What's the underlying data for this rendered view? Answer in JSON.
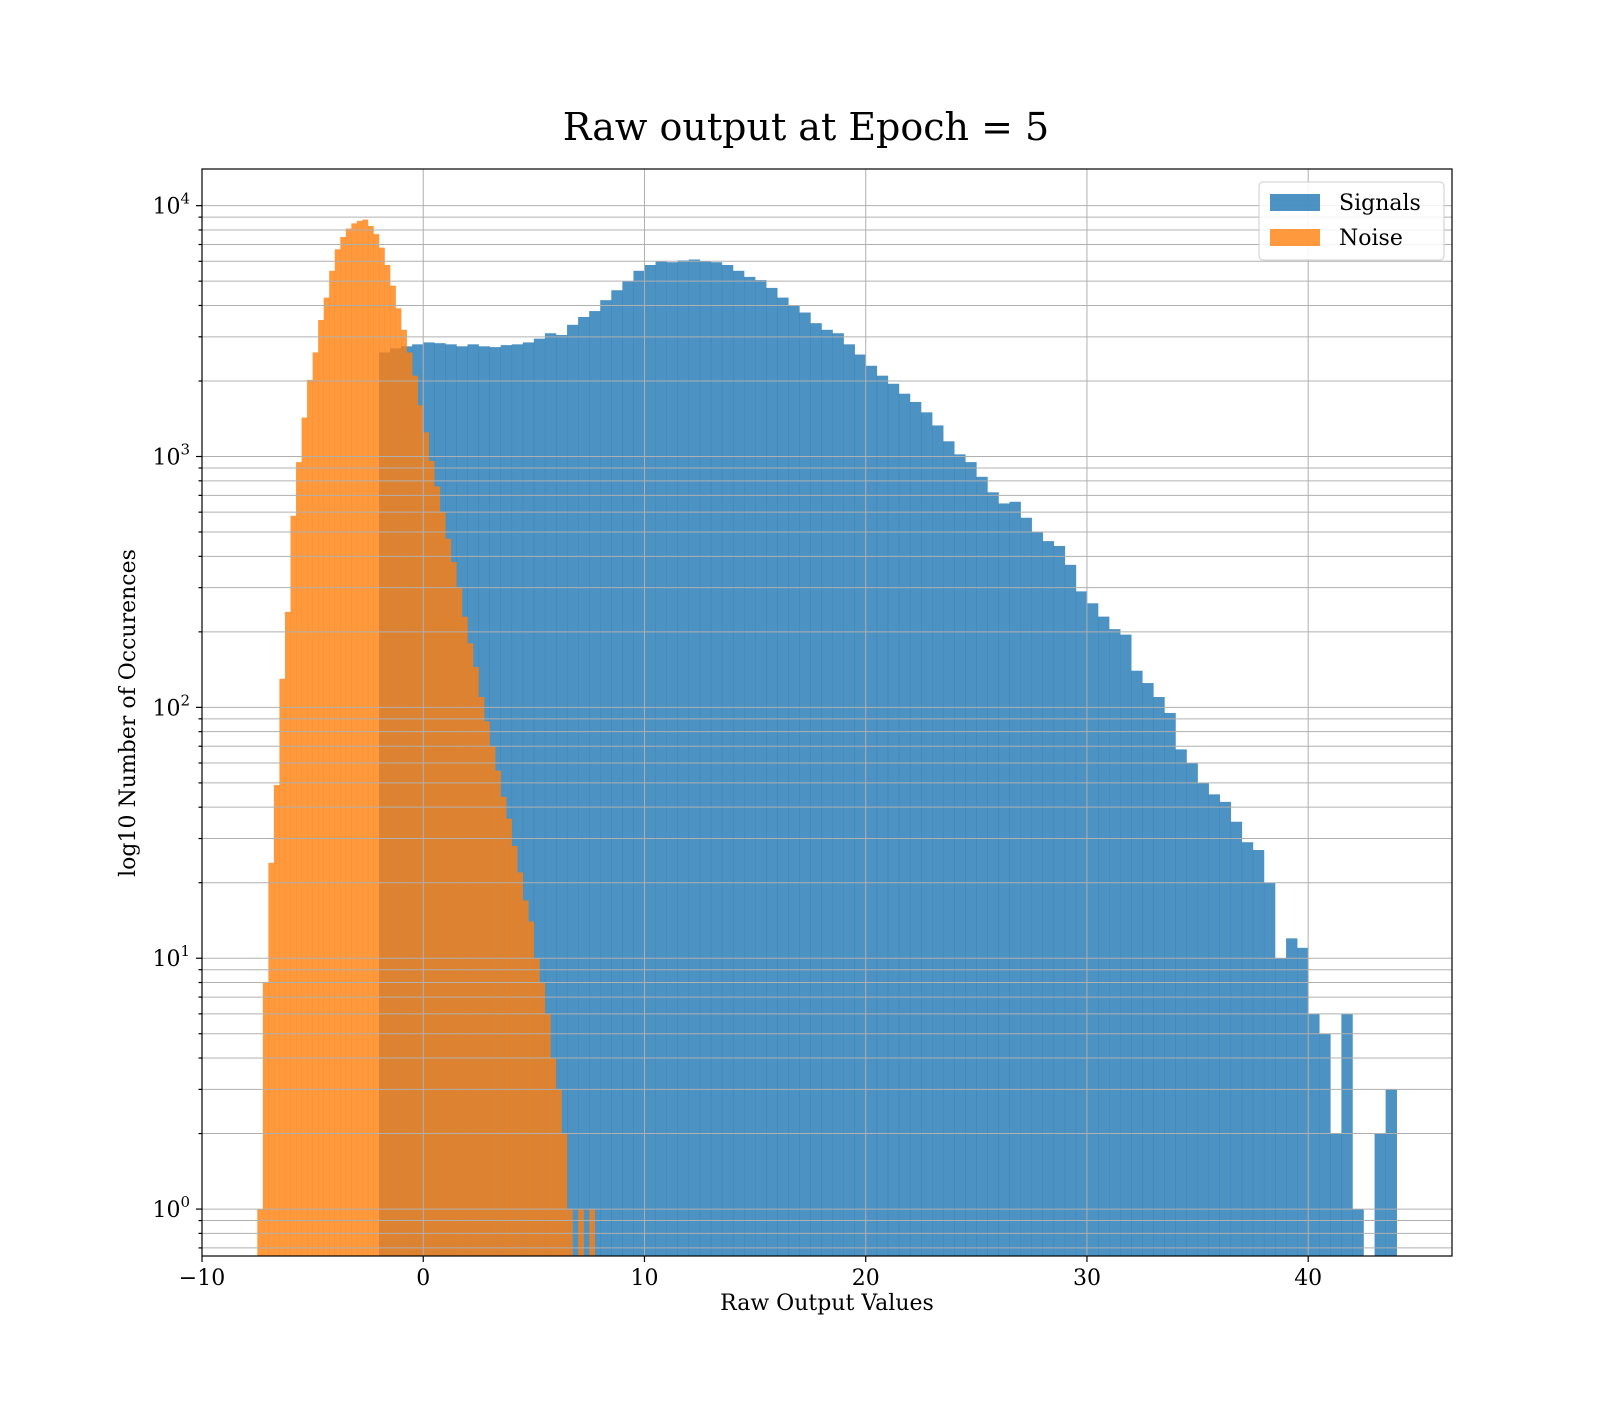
{
  "chart_data": {
    "type": "histogram",
    "title": "Raw output at Epoch = 5",
    "xlabel": "Raw Output Values",
    "ylabel": "log10 Number of Occurences",
    "yscale": "log",
    "xlim": [
      -10,
      46.5
    ],
    "ylim": [
      0.65,
      14000
    ],
    "grid": true,
    "legend_position": "top-right",
    "xticks": [
      -10,
      0,
      10,
      20,
      30,
      40
    ],
    "xtick_labels": [
      "−10",
      "0",
      "10",
      "20",
      "30",
      "40"
    ],
    "yticks": [
      1,
      10,
      100,
      1000,
      10000
    ],
    "ytick_labels": [
      "10",
      "10",
      "10",
      "10",
      "10"
    ],
    "ytick_exponents": [
      "0",
      "1",
      "2",
      "3",
      "4"
    ],
    "series": [
      {
        "name": "Signals",
        "color": "#1f77b4",
        "bins": [
          [
            -2.0,
            -1.5,
            2600
          ],
          [
            -1.5,
            -1.0,
            2700
          ],
          [
            -1.0,
            -0.5,
            2750
          ],
          [
            -0.5,
            0.0,
            2800
          ],
          [
            0.0,
            0.5,
            2850
          ],
          [
            0.5,
            1.0,
            2830
          ],
          [
            1.0,
            1.5,
            2800
          ],
          [
            1.5,
            2.0,
            2750
          ],
          [
            2.0,
            2.5,
            2800
          ],
          [
            2.5,
            3.0,
            2750
          ],
          [
            3.0,
            3.5,
            2730
          ],
          [
            3.5,
            4.0,
            2780
          ],
          [
            4.0,
            4.5,
            2800
          ],
          [
            4.5,
            5.0,
            2850
          ],
          [
            5.0,
            5.5,
            2950
          ],
          [
            5.5,
            6.0,
            3100
          ],
          [
            6.0,
            6.5,
            3050
          ],
          [
            6.5,
            7.0,
            3350
          ],
          [
            7.0,
            7.5,
            3600
          ],
          [
            7.5,
            8.0,
            3800
          ],
          [
            8.0,
            8.5,
            4200
          ],
          [
            8.5,
            9.0,
            4600
          ],
          [
            9.0,
            9.5,
            5000
          ],
          [
            9.5,
            10.0,
            5500
          ],
          [
            10.0,
            10.5,
            5800
          ],
          [
            10.5,
            11.0,
            6000
          ],
          [
            11.0,
            11.5,
            5950
          ],
          [
            11.5,
            12.0,
            6050
          ],
          [
            12.0,
            12.5,
            6100
          ],
          [
            12.5,
            13.0,
            6000
          ],
          [
            13.0,
            13.5,
            5950
          ],
          [
            13.5,
            14.0,
            5800
          ],
          [
            14.0,
            14.5,
            5500
          ],
          [
            14.5,
            15.0,
            5200
          ],
          [
            15.0,
            15.5,
            5050
          ],
          [
            15.5,
            16.0,
            4700
          ],
          [
            16.0,
            16.5,
            4300
          ],
          [
            16.5,
            17.0,
            4000
          ],
          [
            17.0,
            17.5,
            3750
          ],
          [
            17.5,
            18.0,
            3400
          ],
          [
            18.0,
            18.5,
            3200
          ],
          [
            18.5,
            19.0,
            3100
          ],
          [
            19.0,
            19.5,
            2800
          ],
          [
            19.5,
            20.0,
            2550
          ],
          [
            20.0,
            20.5,
            2300
          ],
          [
            20.5,
            21.0,
            2100
          ],
          [
            21.0,
            21.5,
            1950
          ],
          [
            21.5,
            22.0,
            1780
          ],
          [
            22.0,
            22.5,
            1650
          ],
          [
            22.5,
            23.0,
            1500
          ],
          [
            23.0,
            23.5,
            1330
          ],
          [
            23.5,
            24.0,
            1150
          ],
          [
            24.0,
            24.5,
            1020
          ],
          [
            24.5,
            25.0,
            950
          ],
          [
            25.0,
            25.5,
            830
          ],
          [
            25.5,
            26.0,
            720
          ],
          [
            26.0,
            26.5,
            650
          ],
          [
            26.5,
            27.0,
            660
          ],
          [
            27.0,
            27.5,
            570
          ],
          [
            27.5,
            28.0,
            500
          ],
          [
            28.0,
            28.5,
            460
          ],
          [
            28.5,
            29.0,
            440
          ],
          [
            29.0,
            29.5,
            370
          ],
          [
            29.5,
            30.0,
            290
          ],
          [
            30.0,
            30.5,
            260
          ],
          [
            30.5,
            31.0,
            230
          ],
          [
            31.0,
            31.5,
            205
          ],
          [
            31.5,
            32.0,
            195
          ],
          [
            32.0,
            32.5,
            140
          ],
          [
            32.5,
            33.0,
            125
          ],
          [
            33.0,
            33.5,
            110
          ],
          [
            33.5,
            34.0,
            95
          ],
          [
            34.0,
            34.5,
            68
          ],
          [
            34.5,
            35.0,
            60
          ],
          [
            35.0,
            35.5,
            50
          ],
          [
            35.5,
            36.0,
            45
          ],
          [
            36.0,
            36.5,
            42
          ],
          [
            36.5,
            37.0,
            35
          ],
          [
            37.0,
            37.5,
            29
          ],
          [
            37.5,
            38.0,
            27
          ],
          [
            38.0,
            38.5,
            20
          ],
          [
            38.5,
            39.0,
            10
          ],
          [
            39.0,
            39.5,
            12
          ],
          [
            39.5,
            40.0,
            11
          ],
          [
            40.0,
            40.5,
            6
          ],
          [
            40.5,
            41.0,
            5
          ],
          [
            41.0,
            41.5,
            2
          ],
          [
            41.5,
            42.0,
            6
          ],
          [
            42.0,
            42.5,
            1
          ],
          [
            42.5,
            43.0,
            0
          ],
          [
            43.0,
            43.5,
            2
          ],
          [
            43.5,
            44.0,
            3
          ]
        ]
      },
      {
        "name": "Noise",
        "color": "#ff7f0e",
        "bins": [
          [
            -7.5,
            -7.25,
            1
          ],
          [
            -7.25,
            -7.0,
            8
          ],
          [
            -7.0,
            -6.75,
            24
          ],
          [
            -6.75,
            -6.5,
            49
          ],
          [
            -6.5,
            -6.25,
            130
          ],
          [
            -6.25,
            -6.0,
            240
          ],
          [
            -6.0,
            -5.75,
            580
          ],
          [
            -5.75,
            -5.5,
            950
          ],
          [
            -5.5,
            -5.25,
            1430
          ],
          [
            -5.25,
            -5.0,
            2020
          ],
          [
            -5.0,
            -4.75,
            2600
          ],
          [
            -4.75,
            -4.5,
            3500
          ],
          [
            -4.5,
            -4.25,
            4300
          ],
          [
            -4.25,
            -4.0,
            5500
          ],
          [
            -4.0,
            -3.75,
            6700
          ],
          [
            -3.75,
            -3.5,
            7500
          ],
          [
            -3.5,
            -3.25,
            8100
          ],
          [
            -3.25,
            -3.0,
            8500
          ],
          [
            -3.0,
            -2.75,
            8700
          ],
          [
            -2.75,
            -2.5,
            8800
          ],
          [
            -2.5,
            -2.25,
            8300
          ],
          [
            -2.25,
            -2.0,
            7700
          ],
          [
            -2.0,
            -1.75,
            6800
          ],
          [
            -1.75,
            -1.5,
            5800
          ],
          [
            -1.5,
            -1.25,
            4800
          ],
          [
            -1.25,
            -1.0,
            3900
          ],
          [
            -1.0,
            -0.75,
            3200
          ],
          [
            -0.75,
            -0.5,
            2600
          ],
          [
            -0.5,
            -0.25,
            2100
          ],
          [
            -0.25,
            0.0,
            1600
          ],
          [
            0.0,
            0.25,
            1250
          ],
          [
            0.25,
            0.5,
            960
          ],
          [
            0.5,
            0.75,
            760
          ],
          [
            0.75,
            1.0,
            600
          ],
          [
            1.0,
            1.25,
            470
          ],
          [
            1.25,
            1.5,
            380
          ],
          [
            1.5,
            1.75,
            300
          ],
          [
            1.75,
            2.0,
            230
          ],
          [
            2.0,
            2.25,
            180
          ],
          [
            2.25,
            2.5,
            145
          ],
          [
            2.5,
            2.75,
            110
          ],
          [
            2.75,
            3.0,
            88
          ],
          [
            3.0,
            3.25,
            70
          ],
          [
            3.25,
            3.5,
            56
          ],
          [
            3.5,
            3.75,
            44
          ],
          [
            3.75,
            4.0,
            36
          ],
          [
            4.0,
            4.25,
            28
          ],
          [
            4.25,
            4.5,
            22
          ],
          [
            4.5,
            4.75,
            17
          ],
          [
            4.75,
            5.0,
            14
          ],
          [
            5.0,
            5.25,
            10
          ],
          [
            5.25,
            5.5,
            8
          ],
          [
            5.5,
            5.75,
            6
          ],
          [
            5.75,
            6.0,
            4
          ],
          [
            6.0,
            6.25,
            3
          ],
          [
            6.25,
            6.5,
            2
          ],
          [
            6.5,
            6.75,
            1
          ],
          [
            6.75,
            7.0,
            0
          ],
          [
            7.0,
            7.25,
            1
          ],
          [
            7.25,
            7.5,
            0
          ],
          [
            7.5,
            7.75,
            1
          ]
        ]
      }
    ]
  }
}
